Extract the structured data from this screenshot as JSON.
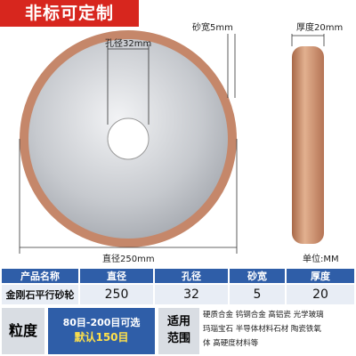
{
  "banner": "非标可定制",
  "annotations": {
    "hole": "孔径32mm",
    "sand_width": "砂宽5mm",
    "thickness": "厚度20mm",
    "diameter": "直径250mm",
    "unit": "单位:MM"
  },
  "table": {
    "header": [
      "产品名称",
      "直径",
      "孔径",
      "砂宽",
      "厚度"
    ],
    "rows": [
      [
        "金刚石平行砂轮",
        "250",
        "32",
        "5",
        "20"
      ]
    ]
  },
  "grit": {
    "label": "粒度",
    "options": "80目-200目可选",
    "default": "默认150目",
    "scope_label": "适用范围",
    "scope_lines": [
      "硬质合金 钨钢合金 高铝瓷 光学玻璃",
      "玛瑙宝石 半导体材料石材 陶瓷铁氧",
      "体 高硬度材料等"
    ]
  }
}
